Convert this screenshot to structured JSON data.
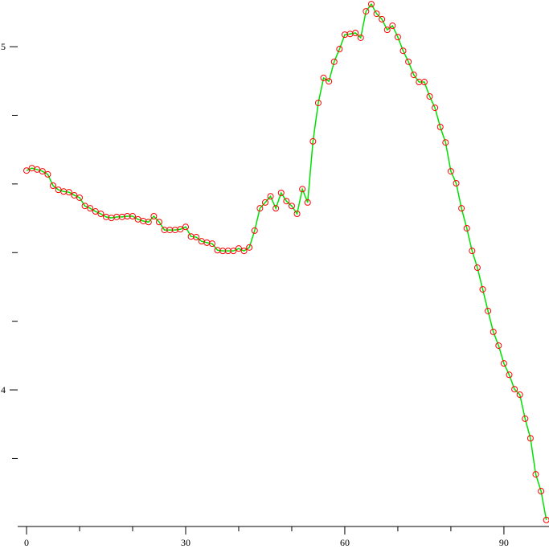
{
  "chart_data": {
    "type": "line",
    "x": [
      0,
      1,
      2,
      3,
      4,
      5,
      6,
      7,
      8,
      9,
      10,
      11,
      12,
      13,
      14,
      15,
      16,
      17,
      18,
      19,
      20,
      21,
      22,
      23,
      24,
      25,
      26,
      27,
      28,
      29,
      30,
      31,
      32,
      33,
      34,
      35,
      36,
      37,
      38,
      39,
      40,
      41,
      42,
      43,
      44,
      45,
      46,
      47,
      48,
      49,
      50,
      51,
      52,
      53,
      54,
      55,
      56,
      57,
      58,
      59,
      60,
      61,
      62,
      63,
      64,
      65,
      66,
      67,
      68,
      69,
      70,
      71,
      72,
      73,
      74,
      75,
      76,
      77,
      78,
      79,
      80,
      81,
      82,
      83,
      84,
      85,
      86,
      87,
      88,
      89,
      90,
      91,
      92,
      93,
      94,
      95,
      96,
      97,
      98
    ],
    "series": [
      {
        "color": "#00e000",
        "marker_color": "#ff0000",
        "values": [
          4.639,
          4.646,
          4.642,
          4.637,
          4.628,
          4.595,
          4.583,
          4.578,
          4.576,
          4.567,
          4.56,
          4.536,
          4.529,
          4.52,
          4.513,
          4.504,
          4.501,
          4.504,
          4.504,
          4.506,
          4.506,
          4.497,
          4.492,
          4.489,
          4.506,
          4.489,
          4.466,
          4.466,
          4.466,
          4.468,
          4.475,
          4.447,
          4.445,
          4.433,
          4.429,
          4.426,
          4.407,
          4.405,
          4.405,
          4.405,
          4.412,
          4.405,
          4.415,
          4.464,
          4.529,
          4.546,
          4.564,
          4.529,
          4.574,
          4.55,
          4.536,
          4.513,
          4.585,
          4.546,
          4.724,
          4.836,
          4.909,
          4.899,
          4.956,
          4.993,
          5.035,
          5.037,
          5.04,
          5.026,
          5.103,
          5.124,
          5.096,
          5.08,
          5.049,
          5.061,
          5.028,
          4.988,
          4.956,
          4.918,
          4.897,
          4.897,
          4.855,
          4.822,
          4.766,
          4.721,
          4.637,
          4.602,
          4.529,
          4.471,
          4.405,
          4.356,
          4.293,
          4.23,
          4.169,
          4.129,
          4.077,
          4.044,
          4.002,
          3.986,
          3.916,
          3.859,
          3.754,
          3.705,
          3.621
        ]
      }
    ],
    "xlim": [
      -1.67,
      98.5
    ],
    "ylim": [
      3.602,
      5.136
    ],
    "xticks": [
      0,
      30,
      60,
      90
    ],
    "xminorticks": [
      10,
      20,
      40,
      50,
      70,
      80
    ],
    "yticks": [
      4,
      5
    ],
    "yminorticks": [
      3.8,
      4.2,
      4.4,
      4.6,
      4.8
    ]
  }
}
